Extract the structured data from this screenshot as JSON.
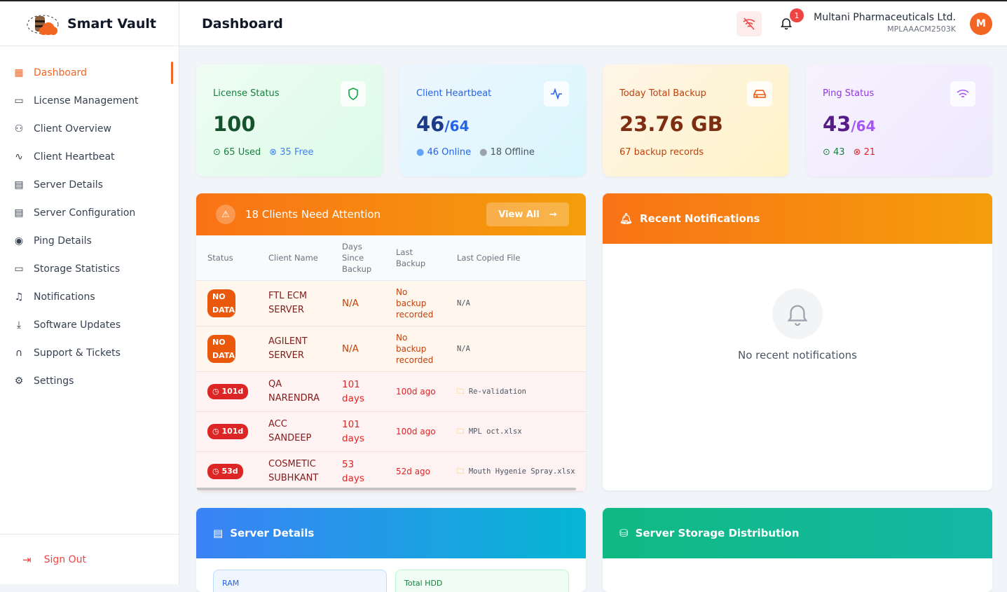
{
  "app": {
    "name": "Smart Vault"
  },
  "sidebar": {
    "items": [
      {
        "label": "Dashboard",
        "icon": "grid-icon",
        "active": true
      },
      {
        "label": "License Management",
        "icon": "id-card-icon"
      },
      {
        "label": "Client Overview",
        "icon": "users-icon"
      },
      {
        "label": "Client Heartbeat",
        "icon": "activity-icon"
      },
      {
        "label": "Server Details",
        "icon": "server-icon"
      },
      {
        "label": "Server Configuration",
        "icon": "server-config-icon"
      },
      {
        "label": "Ping Details",
        "icon": "broadcast-icon"
      },
      {
        "label": "Storage Statistics",
        "icon": "hard-drive-icon"
      },
      {
        "label": "Notifications",
        "icon": "bell-icon"
      },
      {
        "label": "Software Updates",
        "icon": "download-icon"
      },
      {
        "label": "Support & Tickets",
        "icon": "headphones-icon"
      },
      {
        "label": "Settings",
        "icon": "gear-icon"
      }
    ],
    "signout": "Sign Out"
  },
  "header": {
    "title": "Dashboard",
    "notification_count": "1",
    "org_name": "Multani Pharmaceuticals Ltd.",
    "org_id": "MPLAAACM2503K",
    "avatar": "M"
  },
  "cards": {
    "license": {
      "title": "License Status",
      "value": "100",
      "used": "65 Used",
      "free": "35 Free"
    },
    "heartbeat": {
      "title": "Client Heartbeat",
      "value": "46",
      "total": "/64",
      "online": "46 Online",
      "offline": "18 Offline"
    },
    "backup": {
      "title": "Today Total Backup",
      "value": "23.76 GB",
      "sub": "67 backup records"
    },
    "ping": {
      "title": "Ping Status",
      "value": "43",
      "total": "/64",
      "ok": "43",
      "fail": "21"
    }
  },
  "attention": {
    "title": "18 Clients Need Attention",
    "view_all": "View All",
    "columns": [
      "Status",
      "Client Name",
      "Days Since Backup",
      "Last Backup",
      "Last Copied File"
    ],
    "rows": [
      {
        "status": "NO DATA",
        "client": "FTL ECM SERVER",
        "days": "N/A",
        "last": "No backup recorded",
        "file": "N/A",
        "kind": "nodata"
      },
      {
        "status": "NO DATA",
        "client": "AGILENT SERVER",
        "days": "N/A",
        "last": "No backup recorded",
        "file": "N/A",
        "kind": "nodata"
      },
      {
        "status": "101d",
        "client": "QA NARENDRA",
        "days": "101 days",
        "last": "100d ago",
        "file": "Re-validation",
        "kind": "late"
      },
      {
        "status": "101d",
        "client": "ACC SANDEEP",
        "days": "101 days",
        "last": "100d ago",
        "file": "MPL oct.xlsx",
        "kind": "late"
      },
      {
        "status": "53d",
        "client": "COSMETIC SUBHKANT",
        "days": "53 days",
        "last": "52d ago",
        "file": "Mouth Hygenie Spray.xlsx",
        "kind": "late"
      }
    ]
  },
  "notifications": {
    "title": "Recent Notifications",
    "empty": "No recent notifications"
  },
  "server_details": {
    "title": "Server Details",
    "ram": "RAM",
    "hdd": "Total HDD"
  },
  "storage": {
    "title": "Server Storage Distribution"
  }
}
